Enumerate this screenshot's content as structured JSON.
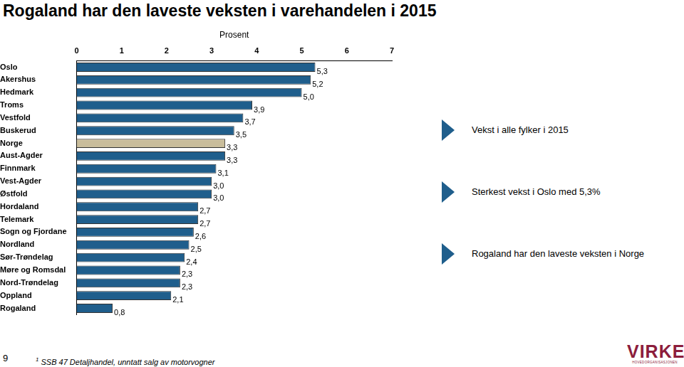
{
  "chart_data": {
    "type": "bar",
    "orientation": "horizontal",
    "title": "Rogaland har den laveste veksten i varehandelen i 2015",
    "x_label": "Prosent",
    "categories": [
      "Oslo",
      "Akershus",
      "Hedmark",
      "Troms",
      "Vestfold",
      "Buskerud",
      "Norge",
      "Aust-Agder",
      "Finnmark",
      "Vest-Agder",
      "Østfold",
      "Hordaland",
      "Telemark",
      "Sogn og Fjordane",
      "Nordland",
      "Sør-Trøndelag",
      "Møre og Romsdal",
      "Nord-Trøndelag",
      "Oppland",
      "Rogaland"
    ],
    "values": [
      5.3,
      5.2,
      5.0,
      3.9,
      3.7,
      3.5,
      3.3,
      3.3,
      3.1,
      3.0,
      3.0,
      2.7,
      2.7,
      2.6,
      2.5,
      2.4,
      2.3,
      2.3,
      2.1,
      0.8
    ],
    "value_labels": [
      "5,3",
      "5,2",
      "5,0",
      "3,9",
      "3,7",
      "3,5",
      "3,3",
      "3,3",
      "3,1",
      "3,0",
      "3,0",
      "2,7",
      "2,7",
      "2,6",
      "2,5",
      "2,4",
      "2,3",
      "2,3",
      "2,1",
      "0,8"
    ],
    "colors": [
      "#1f5e8c",
      "#1f5e8c",
      "#1f5e8c",
      "#1f5e8c",
      "#1f5e8c",
      "#1f5e8c",
      "#c9bd9b",
      "#1f5e8c",
      "#1f5e8c",
      "#1f5e8c",
      "#1f5e8c",
      "#1f5e8c",
      "#1f5e8c",
      "#1f5e8c",
      "#1f5e8c",
      "#1f5e8c",
      "#1f5e8c",
      "#1f5e8c",
      "#1f5e8c",
      "#1f5e8c"
    ],
    "xlim": [
      0,
      7
    ],
    "xticks": [
      0,
      1,
      2,
      3,
      4,
      5,
      6,
      7
    ],
    "data_labels": true,
    "grid": false,
    "annotations": [
      "Vekst i alle fylker i 2015",
      "Sterkest vekst i Oslo med 5,3%",
      "Rogaland har den laveste veksten i Norge"
    ]
  },
  "page_number": 9,
  "footnote": {
    "marker": "1",
    "text": "SSB 47 Detaljhandel, unntatt salg av motorvogner"
  },
  "logo": {
    "text": "VIRKE",
    "subtitle": "HOVEDORGANISASJONEN"
  }
}
